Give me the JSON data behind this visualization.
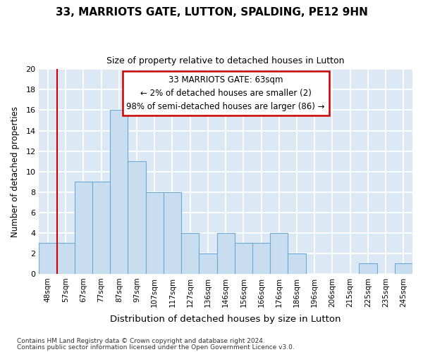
{
  "title": "33, MARRIOTS GATE, LUTTON, SPALDING, PE12 9HN",
  "subtitle": "Size of property relative to detached houses in Lutton",
  "xlabel": "Distribution of detached houses by size in Lutton",
  "ylabel": "Number of detached properties",
  "footnote1": "Contains HM Land Registry data © Crown copyright and database right 2024.",
  "footnote2": "Contains public sector information licensed under the Open Government Licence v3.0.",
  "bar_labels": [
    "48sqm",
    "57sqm",
    "67sqm",
    "77sqm",
    "87sqm",
    "97sqm",
    "107sqm",
    "117sqm",
    "127sqm",
    "136sqm",
    "146sqm",
    "156sqm",
    "166sqm",
    "176sqm",
    "186sqm",
    "196sqm",
    "206sqm",
    "215sqm",
    "225sqm",
    "235sqm",
    "245sqm"
  ],
  "bar_values": [
    3,
    3,
    9,
    9,
    16,
    11,
    8,
    8,
    4,
    2,
    4,
    3,
    3,
    4,
    2,
    0,
    0,
    0,
    1,
    0,
    1
  ],
  "bar_color": "#c9ddf0",
  "bar_edge_color": "#6aaad4",
  "background_color": "#dce9f5",
  "grid_color": "#ffffff",
  "annotation_line1": "33 MARRIOTS GATE: 63sqm",
  "annotation_line2": "← 2% of detached houses are smaller (2)",
  "annotation_line3": "98% of semi-detached houses are larger (86) →",
  "annotation_box_color": "#ffffff",
  "annotation_box_edge_color": "#cc0000",
  "vline_color": "#cc0000",
  "vline_x_index": 1,
  "ylim": [
    0,
    20
  ],
  "yticks": [
    0,
    2,
    4,
    6,
    8,
    10,
    12,
    14,
    16,
    18,
    20
  ]
}
